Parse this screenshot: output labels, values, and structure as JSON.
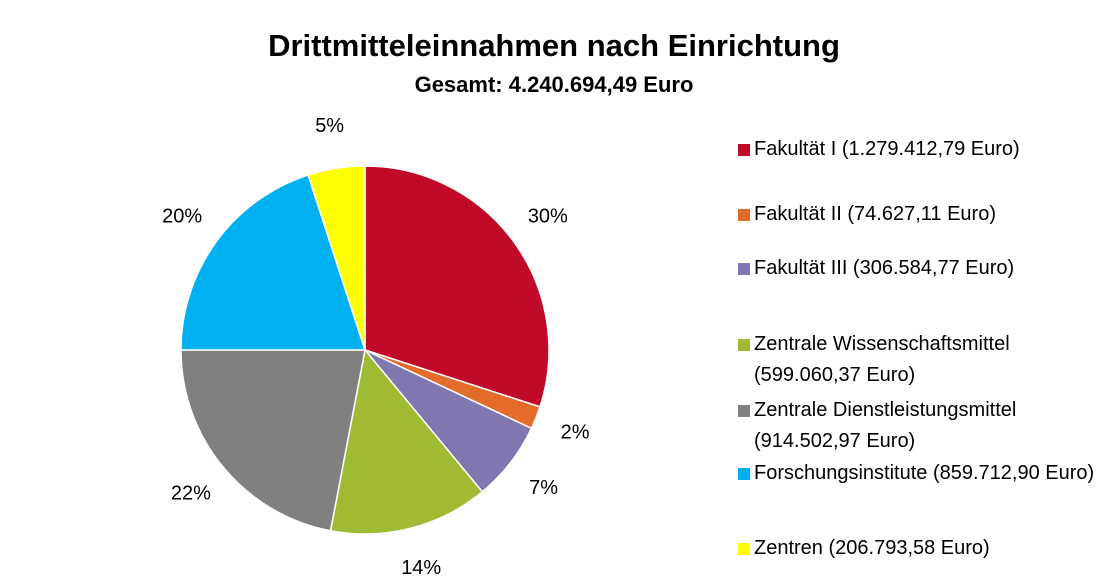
{
  "chart_data": {
    "type": "pie",
    "title": "Drittmitteleinnahmen nach Einrichtung",
    "subtitle": "Gesamt: 4.240.694,49 Euro",
    "categories": [
      "Fakultät I (1.279.412,79 Euro)",
      "Fakultät II (74.627,11 Euro)",
      "Fakultät III (306.584,77 Euro)",
      "Zentrale Wissenschaftsmittel (599.060,37 Euro)",
      "Zentrale Dienstleistungsmittel (914.502,97 Euro)",
      "Forschungsinstitute (859.712,90 Euro)",
      "Zentren (206.793,58 Euro)"
    ],
    "values": [
      30,
      2,
      7,
      14,
      22,
      20,
      5
    ],
    "value_labels": [
      "30%",
      "2%",
      "7%",
      "14%",
      "22%",
      "20%",
      "5%"
    ],
    "colors": [
      "#c00a27",
      "#e46c2a",
      "#8077b0",
      "#9fbb33",
      "#808080",
      "#00b0f0",
      "#ffff00"
    ],
    "legend": "right"
  }
}
